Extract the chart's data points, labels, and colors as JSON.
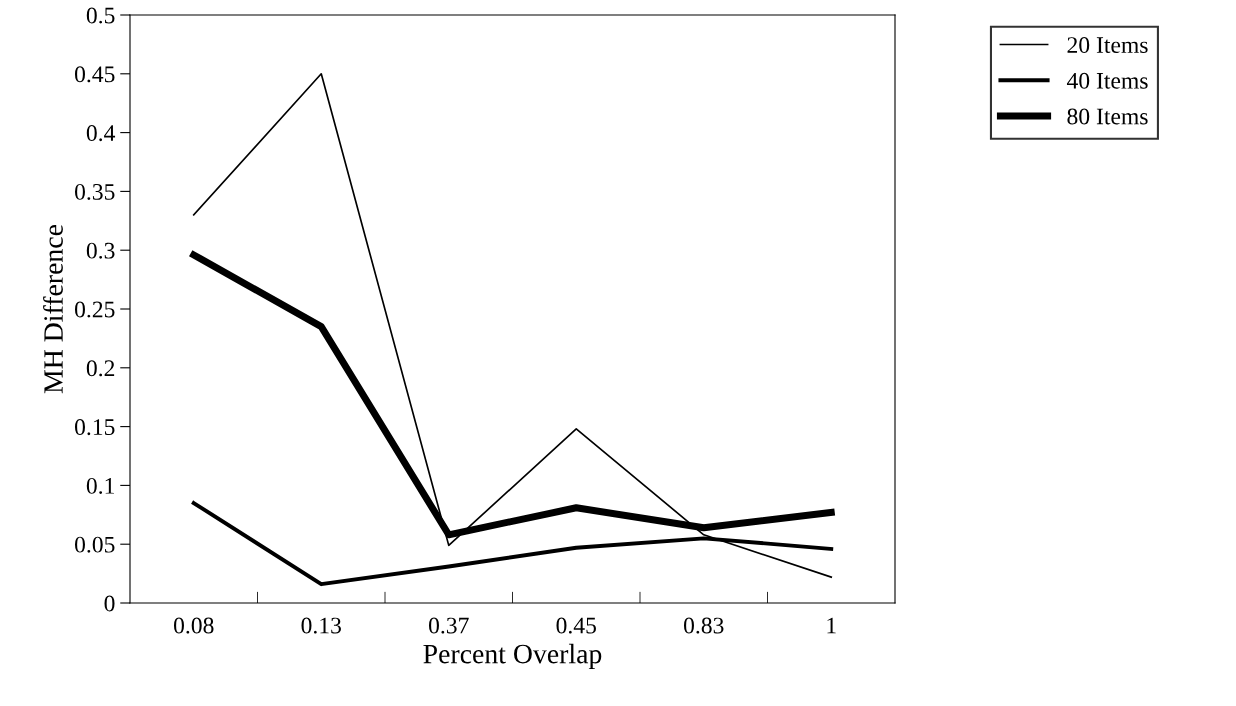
{
  "chart_data": {
    "type": "line",
    "xlabel": "Percent Overlap",
    "ylabel": "MH Difference",
    "categories": [
      "0.08",
      "0.13",
      "0.37",
      "0.45",
      "0.83",
      "1"
    ],
    "series": [
      {
        "name": "20 Items",
        "color": "#000000",
        "values": [
          0.33,
          0.45,
          0.049,
          0.148,
          0.058,
          0.022
        ]
      },
      {
        "name": "40 Items",
        "color": "#000000",
        "values": [
          0.085,
          0.016,
          0.031,
          0.047,
          0.055,
          0.046
        ]
      },
      {
        "name": "80 Items",
        "color": "#000000",
        "values": [
          0.296,
          0.235,
          0.058,
          0.081,
          0.064,
          0.077
        ]
      }
    ],
    "ylim": [
      0,
      0.5
    ],
    "yticks": [
      0,
      0.05,
      0.1,
      0.15,
      0.2,
      0.25,
      0.3,
      0.35,
      0.4,
      0.45,
      0.5
    ],
    "grid": false,
    "legend": "top right",
    "marker": "none",
    "line_style": "solid"
  }
}
